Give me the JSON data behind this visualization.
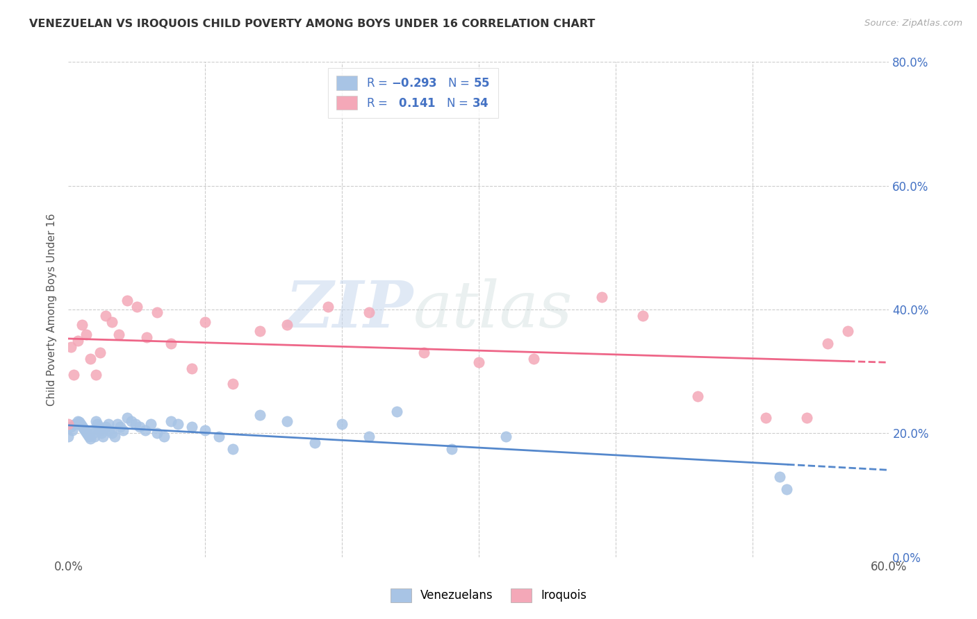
{
  "title": "VENEZUELAN VS IROQUOIS CHILD POVERTY AMONG BOYS UNDER 16 CORRELATION CHART",
  "source": "Source: ZipAtlas.com",
  "xlabel_ticks": [
    "0.0%",
    "",
    "",
    "",
    "",
    "",
    "60.0%"
  ],
  "ylabel_right_ticks": [
    "0.0%",
    "20.0%",
    "40.0%",
    "60.0%",
    "80.0%"
  ],
  "ylabel": "Child Poverty Among Boys Under 16",
  "xlim": [
    0.0,
    0.6
  ],
  "ylim": [
    0.0,
    0.8
  ],
  "venezuelan_R": -0.293,
  "venezuelan_N": 55,
  "iroquois_R": 0.141,
  "iroquois_N": 34,
  "venezuelan_color": "#a8c4e5",
  "iroquois_color": "#f4a8b8",
  "venezuelan_line_color": "#5588cc",
  "iroquois_line_color": "#ee6688",
  "legend_label_1": "Venezuelans",
  "legend_label_2": "Iroquois",
  "watermark_zip": "ZIP",
  "watermark_atlas": "atlas",
  "venezuelan_x": [
    0.0,
    0.002,
    0.003,
    0.005,
    0.007,
    0.008,
    0.009,
    0.01,
    0.011,
    0.012,
    0.013,
    0.014,
    0.015,
    0.016,
    0.017,
    0.018,
    0.019,
    0.02,
    0.021,
    0.022,
    0.023,
    0.024,
    0.025,
    0.027,
    0.029,
    0.03,
    0.032,
    0.034,
    0.036,
    0.038,
    0.04,
    0.043,
    0.046,
    0.049,
    0.052,
    0.056,
    0.06,
    0.065,
    0.07,
    0.075,
    0.08,
    0.09,
    0.1,
    0.11,
    0.12,
    0.14,
    0.16,
    0.18,
    0.2,
    0.22,
    0.24,
    0.28,
    0.32,
    0.52,
    0.525
  ],
  "venezuelan_y": [
    0.195,
    0.21,
    0.205,
    0.215,
    0.22,
    0.218,
    0.215,
    0.212,
    0.208,
    0.205,
    0.202,
    0.198,
    0.195,
    0.192,
    0.205,
    0.2,
    0.195,
    0.22,
    0.215,
    0.21,
    0.205,
    0.2,
    0.195,
    0.21,
    0.215,
    0.205,
    0.2,
    0.195,
    0.215,
    0.21,
    0.205,
    0.225,
    0.22,
    0.215,
    0.21,
    0.205,
    0.215,
    0.2,
    0.195,
    0.22,
    0.215,
    0.21,
    0.205,
    0.195,
    0.175,
    0.23,
    0.22,
    0.185,
    0.215,
    0.195,
    0.235,
    0.175,
    0.195,
    0.13,
    0.11
  ],
  "iroquois_x": [
    0.0,
    0.002,
    0.004,
    0.007,
    0.01,
    0.013,
    0.016,
    0.02,
    0.023,
    0.027,
    0.032,
    0.037,
    0.043,
    0.05,
    0.057,
    0.065,
    0.075,
    0.09,
    0.1,
    0.12,
    0.14,
    0.16,
    0.19,
    0.22,
    0.26,
    0.3,
    0.34,
    0.39,
    0.42,
    0.46,
    0.51,
    0.54,
    0.555,
    0.57
  ],
  "iroquois_y": [
    0.215,
    0.34,
    0.295,
    0.35,
    0.375,
    0.36,
    0.32,
    0.295,
    0.33,
    0.39,
    0.38,
    0.36,
    0.415,
    0.405,
    0.355,
    0.395,
    0.345,
    0.305,
    0.38,
    0.28,
    0.365,
    0.375,
    0.405,
    0.395,
    0.33,
    0.315,
    0.32,
    0.42,
    0.39,
    0.26,
    0.225,
    0.225,
    0.345,
    0.365
  ]
}
